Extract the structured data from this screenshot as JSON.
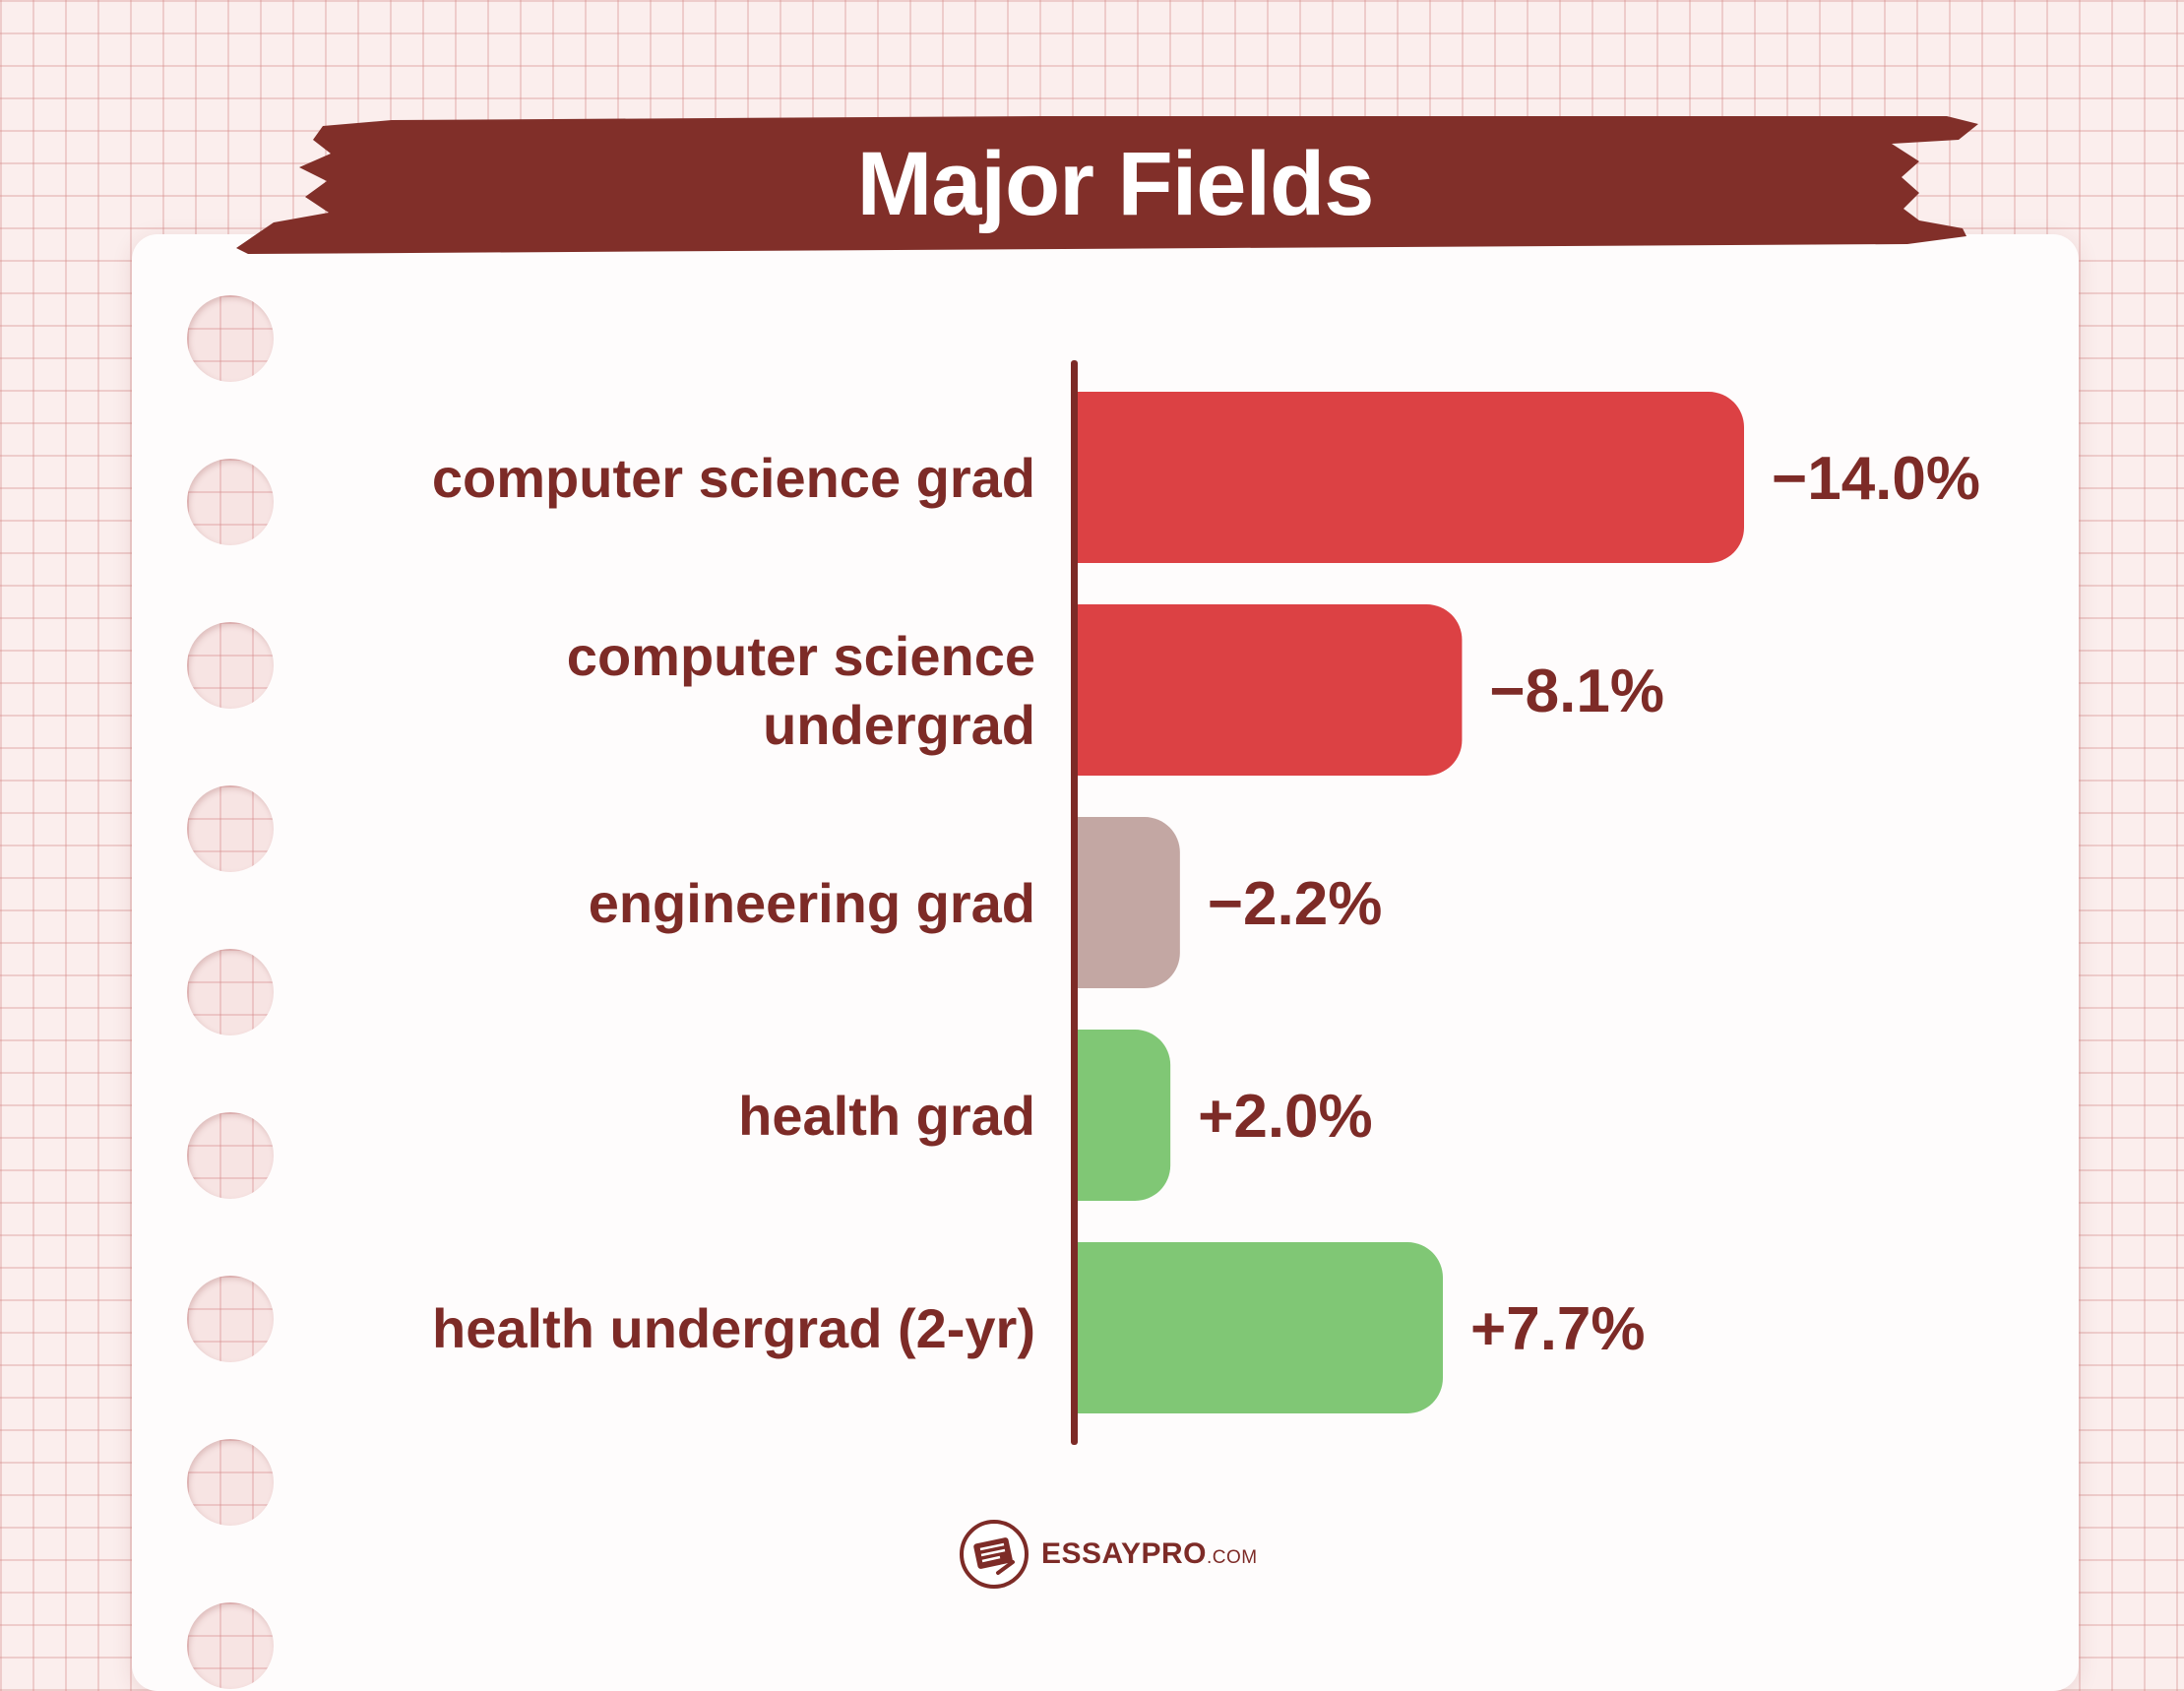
{
  "colors": {
    "negative_bar": "#dc4144",
    "neutral_bar": "#c3a7a3",
    "positive_bar": "#80c775",
    "text": "#7d2b27",
    "banner": "#812f29"
  },
  "brand": {
    "name": "ESSAYPRO",
    "suffix": ".COM",
    "icon": "notebook-pencil-icon"
  },
  "chart_data": {
    "type": "bar",
    "orientation": "horizontal",
    "title": "Major Fields",
    "categories": [
      "computer science grad",
      [
        "computer science",
        "undergrad"
      ],
      "engineering grad",
      "health grad",
      "health undergrad (2-yr)"
    ],
    "values": [
      -14.0,
      -8.1,
      -2.2,
      2.0,
      7.7
    ],
    "value_labels": [
      "−14.0%",
      "−8.1%",
      "−2.2%",
      "+2.0%",
      "+7.7%"
    ],
    "bar_colors": [
      "#dc4144",
      "#dc4144",
      "#c3a7a3",
      "#80c775",
      "#80c775"
    ],
    "xlabel": "",
    "ylabel": "",
    "unit": "%",
    "grid": false,
    "legend": "none"
  }
}
